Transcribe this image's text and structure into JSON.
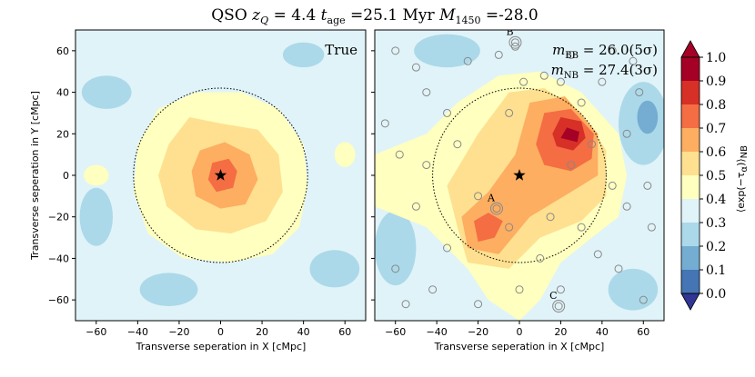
{
  "chart_data": {
    "type": "heatmap",
    "title_parts": [
      "QSO ",
      "z",
      "Q",
      " = 4.4 ",
      "t",
      "age",
      " =25.1 Myr ",
      "M",
      "1450",
      " =-28.0"
    ],
    "colorbar": {
      "label_parts": [
        "⟨exp(−τ",
        "α",
        ")⟩",
        "NB"
      ],
      "ticks": [
        "0.0",
        "0.1",
        "0.2",
        "0.3",
        "0.4",
        "0.5",
        "0.6",
        "0.7",
        "0.8",
        "0.9",
        "1.0"
      ],
      "range": [
        0,
        1
      ],
      "levels": [
        0.0,
        0.1,
        0.2,
        0.3,
        0.4,
        0.5,
        0.6,
        0.7,
        0.8,
        0.9,
        1.0
      ],
      "colors": {
        "lt0": "#313695",
        "l0": "#4575b4",
        "l1": "#74add1",
        "l2": "#abd9e9",
        "l3": "#e0f3f8",
        "l4": "#ffffbf",
        "l5": "#fee090",
        "l6": "#fdae61",
        "l7": "#f46d43",
        "l8": "#d73027",
        "l9": "#a50026"
      }
    },
    "panels": [
      {
        "id": "left",
        "annotation": "True",
        "xlabel": "Transverse seperation in X [cMpc]",
        "ylabel": "Transverse seperation in Y [cMpc]",
        "xlim": [
          -70,
          70
        ],
        "ylim": [
          -70,
          70
        ],
        "xticks": [
          "−60",
          "−40",
          "−20",
          "0",
          "20",
          "40",
          "60"
        ],
        "yticks": [
          "60",
          "40",
          "20",
          "0",
          "−20",
          "−40",
          "−60"
        ],
        "quasar_xy": [
          0,
          0
        ],
        "circle_radius": 42,
        "background_level": 0.35,
        "regions": [
          {
            "level": 0.45,
            "pts": [
              [
                -40,
                15
              ],
              [
                -30,
                32
              ],
              [
                -12,
                40
              ],
              [
                10,
                40
              ],
              [
                28,
                32
              ],
              [
                40,
                15
              ],
              [
                42,
                -5
              ],
              [
                38,
                -25
              ],
              [
                25,
                -38
              ],
              [
                5,
                -42
              ],
              [
                -18,
                -40
              ],
              [
                -35,
                -28
              ],
              [
                -42,
                -8
              ]
            ]
          },
          {
            "level": 0.55,
            "pts": [
              [
                -25,
                15
              ],
              [
                -15,
                28
              ],
              [
                0,
                25
              ],
              [
                18,
                22
              ],
              [
                28,
                10
              ],
              [
                30,
                -8
              ],
              [
                22,
                -22
              ],
              [
                5,
                -28
              ],
              [
                -12,
                -26
              ],
              [
                -26,
                -15
              ],
              [
                -30,
                0
              ]
            ]
          },
          {
            "level": 0.65,
            "pts": [
              [
                -14,
                2
              ],
              [
                -10,
                12
              ],
              [
                2,
                16
              ],
              [
                14,
                10
              ],
              [
                18,
                -2
              ],
              [
                12,
                -14
              ],
              [
                0,
                -16
              ],
              [
                -12,
                -10
              ]
            ]
          },
          {
            "level": 0.75,
            "pts": [
              [
                -6,
                -2
              ],
              [
                -4,
                6
              ],
              [
                4,
                8
              ],
              [
                8,
                2
              ],
              [
                6,
                -6
              ],
              [
                -2,
                -8
              ]
            ]
          }
        ],
        "blobs": [
          {
            "level": 0.25,
            "xy": [
              -55,
              40
            ],
            "r": [
              12,
              8
            ]
          },
          {
            "level": 0.25,
            "xy": [
              -60,
              -20
            ],
            "r": [
              8,
              14
            ]
          },
          {
            "level": 0.25,
            "xy": [
              55,
              -45
            ],
            "r": [
              12,
              9
            ]
          },
          {
            "level": 0.25,
            "xy": [
              -25,
              -55
            ],
            "r": [
              14,
              8
            ]
          },
          {
            "level": 0.25,
            "xy": [
              40,
              58
            ],
            "r": [
              10,
              6
            ]
          },
          {
            "level": 0.45,
            "xy": [
              -60,
              0
            ],
            "r": [
              6,
              5
            ]
          },
          {
            "level": 0.45,
            "xy": [
              60,
              10
            ],
            "r": [
              5,
              6
            ]
          }
        ]
      },
      {
        "id": "right",
        "annotation_lines": [
          {
            "sym": "m",
            "sub": "BB",
            "val": " = 26.0(5σ)"
          },
          {
            "sym": "m",
            "sub": "NB",
            "val": " = 27.4(3σ)"
          }
        ],
        "xlabel": "Transverse seperation in X [cMpc]",
        "xlim": [
          -70,
          70
        ],
        "ylim": [
          -70,
          70
        ],
        "xticks": [
          "−60",
          "−40",
          "−20",
          "0",
          "20",
          "40",
          "60"
        ],
        "quasar_xy": [
          0,
          0
        ],
        "circle_radius": 42,
        "background_level": 0.35,
        "regions": [
          {
            "level": 0.45,
            "pts": [
              [
                -70,
                10
              ],
              [
                -45,
                20
              ],
              [
                -30,
                35
              ],
              [
                -10,
                48
              ],
              [
                10,
                50
              ],
              [
                30,
                40
              ],
              [
                48,
                20
              ],
              [
                52,
                0
              ],
              [
                48,
                -20
              ],
              [
                35,
                -30
              ],
              [
                20,
                -42
              ],
              [
                10,
                -60
              ],
              [
                0,
                -70
              ],
              [
                -15,
                -60
              ],
              [
                -25,
                -45
              ],
              [
                -45,
                -25
              ],
              [
                -70,
                -15
              ]
            ]
          },
          {
            "level": 0.55,
            "pts": [
              [
                -35,
                -5
              ],
              [
                -20,
                20
              ],
              [
                -5,
                40
              ],
              [
                12,
                42
              ],
              [
                30,
                30
              ],
              [
                42,
                12
              ],
              [
                42,
                -10
              ],
              [
                30,
                -22
              ],
              [
                10,
                -30
              ],
              [
                -5,
                -45
              ],
              [
                -25,
                -42
              ],
              [
                -30,
                -25
              ]
            ]
          },
          {
            "level": 0.65,
            "pts": [
              [
                -28,
                -20
              ],
              [
                -15,
                -8
              ],
              [
                -2,
                10
              ],
              [
                5,
                35
              ],
              [
                22,
                38
              ],
              [
                38,
                20
              ],
              [
                38,
                0
              ],
              [
                25,
                -8
              ],
              [
                5,
                -20
              ],
              [
                -10,
                -38
              ],
              [
                -25,
                -35
              ]
            ]
          },
          {
            "level": 0.75,
            "pts": [
              [
                8,
                15
              ],
              [
                12,
                30
              ],
              [
                25,
                32
              ],
              [
                36,
                20
              ],
              [
                35,
                8
              ],
              [
                25,
                2
              ],
              [
                12,
                5
              ]
            ]
          },
          {
            "level": 0.85,
            "pts": [
              [
                16,
                20
              ],
              [
                20,
                28
              ],
              [
                30,
                26
              ],
              [
                32,
                18
              ],
              [
                26,
                12
              ],
              [
                18,
                14
              ]
            ]
          },
          {
            "level": 0.95,
            "pts": [
              [
                20,
                18
              ],
              [
                23,
                23
              ],
              [
                29,
                21
              ],
              [
                28,
                16
              ]
            ]
          },
          {
            "level": 0.75,
            "pts": [
              [
                -22,
                -22
              ],
              [
                -15,
                -18
              ],
              [
                -8,
                -22
              ],
              [
                -12,
                -30
              ],
              [
                -20,
                -32
              ]
            ]
          }
        ],
        "blobs": [
          {
            "level": 0.25,
            "xy": [
              60,
              25
            ],
            "r": [
              12,
              20
            ]
          },
          {
            "level": 0.25,
            "xy": [
              -60,
              -35
            ],
            "r": [
              10,
              18
            ]
          },
          {
            "level": 0.25,
            "xy": [
              -35,
              60
            ],
            "r": [
              16,
              8
            ]
          },
          {
            "level": 0.15,
            "xy": [
              62,
              28
            ],
            "r": [
              5,
              8
            ]
          },
          {
            "level": 0.25,
            "xy": [
              55,
              -55
            ],
            "r": [
              12,
              10
            ]
          }
        ],
        "galaxies": [
          {
            "xy": [
              -65,
              25
            ],
            "label": ""
          },
          {
            "xy": [
              -58,
              10
            ],
            "label": ""
          },
          {
            "xy": [
              -60,
              -45
            ],
            "label": ""
          },
          {
            "xy": [
              -50,
              -15
            ],
            "label": ""
          },
          {
            "xy": [
              -45,
              40
            ],
            "label": ""
          },
          {
            "xy": [
              -35,
              30
            ],
            "label": ""
          },
          {
            "xy": [
              -25,
              55
            ],
            "label": ""
          },
          {
            "xy": [
              -10,
              58
            ],
            "label": ""
          },
          {
            "xy": [
              -2,
              62
            ],
            "label": ""
          },
          {
            "xy": [
              -20,
              -10
            ],
            "label": ""
          },
          {
            "xy": [
              -35,
              -35
            ],
            "label": ""
          },
          {
            "xy": [
              -42,
              -55
            ],
            "label": ""
          },
          {
            "xy": [
              -20,
              -62
            ],
            "label": ""
          },
          {
            "xy": [
              -55,
              -62
            ],
            "label": ""
          },
          {
            "xy": [
              -50,
              52
            ],
            "label": ""
          },
          {
            "xy": [
              -5,
              30
            ],
            "label": ""
          },
          {
            "xy": [
              2,
              45
            ],
            "label": ""
          },
          {
            "xy": [
              12,
              48
            ],
            "label": ""
          },
          {
            "xy": [
              20,
              45
            ],
            "label": ""
          },
          {
            "xy": [
              30,
              35
            ],
            "label": ""
          },
          {
            "xy": [
              40,
              45
            ],
            "label": ""
          },
          {
            "xy": [
              45,
              60
            ],
            "label": ""
          },
          {
            "xy": [
              25,
              58
            ],
            "label": ""
          },
          {
            "xy": [
              35,
              15
            ],
            "label": ""
          },
          {
            "xy": [
              52,
              20
            ],
            "label": ""
          },
          {
            "xy": [
              58,
              40
            ],
            "label": ""
          },
          {
            "xy": [
              62,
              -5
            ],
            "label": ""
          },
          {
            "xy": [
              52,
              -15
            ],
            "label": ""
          },
          {
            "xy": [
              48,
              -45
            ],
            "label": ""
          },
          {
            "xy": [
              38,
              -38
            ],
            "label": ""
          },
          {
            "xy": [
              30,
              -25
            ],
            "label": ""
          },
          {
            "xy": [
              20,
              -55
            ],
            "label": ""
          },
          {
            "xy": [
              10,
              -40
            ],
            "label": ""
          },
          {
            "xy": [
              0,
              -55
            ],
            "label": ""
          },
          {
            "xy": [
              60,
              -60
            ],
            "label": ""
          },
          {
            "xy": [
              64,
              -25
            ],
            "label": ""
          },
          {
            "xy": [
              -5,
              -25
            ],
            "label": ""
          },
          {
            "xy": [
              15,
              -20
            ],
            "label": ""
          },
          {
            "xy": [
              25,
              5
            ],
            "label": ""
          },
          {
            "xy": [
              -45,
              5
            ],
            "label": ""
          },
          {
            "xy": [
              -30,
              15
            ],
            "label": ""
          },
          {
            "xy": [
              45,
              -5
            ],
            "label": ""
          },
          {
            "xy": [
              55,
              55
            ],
            "label": ""
          },
          {
            "xy": [
              -60,
              60
            ],
            "label": ""
          },
          {
            "xy": [
              -2,
              64
            ],
            "label": "B",
            "ring": true
          },
          {
            "xy": [
              -11,
              -16
            ],
            "label": "A",
            "ring": true
          },
          {
            "xy": [
              19,
              -63
            ],
            "label": "C",
            "ring": true
          }
        ]
      }
    ]
  }
}
